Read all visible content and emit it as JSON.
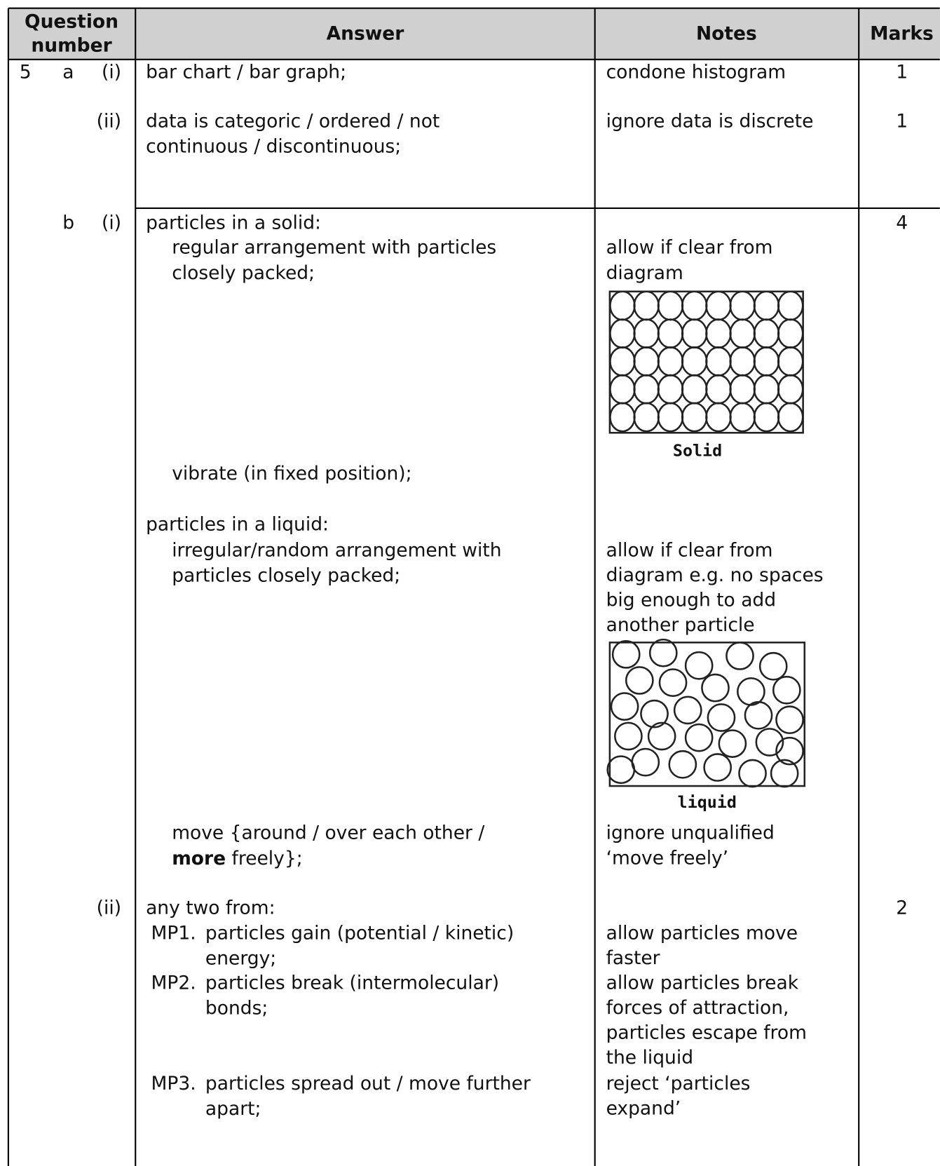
{
  "header": {
    "question_number": [
      "Question",
      "number"
    ],
    "answer": "Answer",
    "notes": "Notes",
    "marks": "Marks"
  },
  "question_5": {
    "number": 5,
    "a": {
      "label": "a",
      "i": {
        "label": "(i)",
        "answer": [
          "bar chart / bar graph;"
        ],
        "notes": [
          "condone histogram"
        ],
        "marks": 1
      },
      "ii": {
        "label": "(ii)",
        "answer": [
          "data is categoric / ordered / not",
          "continuous / discontinuous;"
        ],
        "notes": [
          "ignore data is discrete"
        ],
        "marks": 1
      }
    },
    "b": {
      "label": "b",
      "i": {
        "label": "(i)",
        "marks": 4,
        "solid": {
          "heading": "particles in a solid:",
          "arrangement": [
            "regular arrangement with particles",
            "closely packed;"
          ],
          "arrangement_notes": [
            "allow if clear from",
            "diagram"
          ],
          "diagram_label": "Solid",
          "motion": "vibrate (in fixed position);"
        },
        "liquid": {
          "heading": "particles in a liquid:",
          "arrangement": [
            "irregular/random arrangement with",
            "particles closely packed;"
          ],
          "arrangement_notes": [
            "allow if clear from",
            "diagram e.g. no spaces",
            "big enough to add",
            "another particle"
          ],
          "diagram_label": "liquid",
          "motion": "move {around / over each other /",
          "motion_bold": "more",
          "motion_end": "freely};",
          "motion_notes": [
            "ignore unqualified",
            "‘move freely’"
          ]
        }
      },
      "ii": {
        "label": "(ii)",
        "marks": 2,
        "intro": "any two from:",
        "points": [
          {
            "label": "MP1.",
            "answer": [
              "particles gain (potential / kinetic)",
              "energy;"
            ],
            "notes": [
              "allow particles move",
              "faster"
            ]
          },
          {
            "label": "MP2.",
            "answer": [
              "particles break (intermolecular)",
              "bonds;"
            ],
            "notes": [
              "allow particles break",
              "forces of attraction,",
              "particles escape from",
              "the liquid"
            ]
          },
          {
            "label": "MP3.",
            "answer": [
              "particles spread out / move further",
              "apart;"
            ],
            "notes": [
              "reject ‘particles",
              "expand’"
            ]
          }
        ]
      }
    }
  }
}
